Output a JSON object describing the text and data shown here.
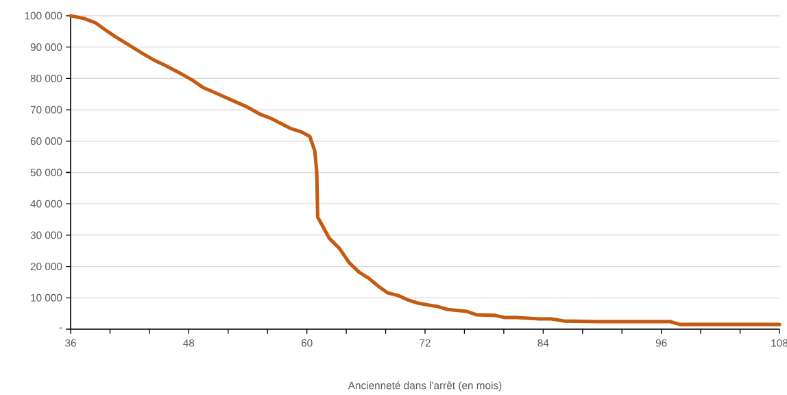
{
  "chart_data": {
    "type": "line",
    "xlabel": "Ancienneté dans l'arrêt (en mois)",
    "x": [
      36,
      37.4,
      38.5,
      39.4,
      40.5,
      41.5,
      43.3,
      44.5,
      45.6,
      47.5,
      48.4,
      49.4,
      51,
      52.5,
      53.8,
      55.3,
      56.4,
      58.3,
      59.4,
      60.3,
      60.8,
      61.0,
      61.1,
      62.3,
      63.3,
      64.3,
      65.3,
      66.3,
      67.3,
      68.2,
      69.3,
      70.2,
      71.3,
      72.3,
      73.3,
      74.3,
      76.2,
      77.2,
      79.1,
      80.1,
      81.3,
      83.6,
      84.8,
      86.1,
      89.5,
      96.9,
      97.9,
      99,
      108
    ],
    "series": [
      {
        "color": "#c55a11",
        "values": [
          100000,
          99100,
          97800,
          95800,
          93400,
          91500,
          88000,
          85800,
          84200,
          81000,
          79400,
          77200,
          75000,
          72900,
          71100,
          68500,
          67200,
          64100,
          63000,
          61500,
          56900,
          50300,
          35700,
          28900,
          25800,
          21200,
          18200,
          16200,
          13600,
          11600,
          10700,
          9400,
          8300,
          7700,
          7200,
          6300,
          5700,
          4600,
          4400,
          3700,
          3700,
          3300,
          3300,
          2600,
          2400,
          2400,
          1500,
          1500,
          1500
        ]
      }
    ],
    "xlim": [
      36,
      108
    ],
    "ylim": [
      0,
      100000
    ],
    "xticks": [
      36,
      {
        "value": 40,
        "label": null
      },
      {
        "value": 44,
        "label": null
      },
      48,
      {
        "value": 52,
        "label": null
      },
      {
        "value": 56,
        "label": null
      },
      60,
      {
        "value": 64,
        "label": null
      },
      {
        "value": 68,
        "label": null
      },
      72,
      {
        "value": 76,
        "label": null
      },
      {
        "value": 80,
        "label": null
      },
      84,
      {
        "value": 88,
        "label": null
      },
      {
        "value": 92,
        "label": null
      },
      96,
      {
        "value": 100,
        "label": null
      },
      {
        "value": 104,
        "label": null
      },
      108
    ],
    "yticks": [
      {
        "value": 0,
        "label": "-"
      },
      {
        "value": 10000,
        "label": "10 000"
      },
      {
        "value": 20000,
        "label": "20 000"
      },
      {
        "value": 30000,
        "label": "30 000"
      },
      {
        "value": 40000,
        "label": "40 000"
      },
      {
        "value": 50000,
        "label": "50 000"
      },
      {
        "value": 60000,
        "label": "60 000"
      },
      {
        "value": 70000,
        "label": "70 000"
      },
      {
        "value": 80000,
        "label": "80 000"
      },
      {
        "value": 90000,
        "label": "90 000"
      },
      {
        "value": 100000,
        "label": "100 000"
      }
    ],
    "grid": "y",
    "marker": "none",
    "line_style": "solid"
  }
}
